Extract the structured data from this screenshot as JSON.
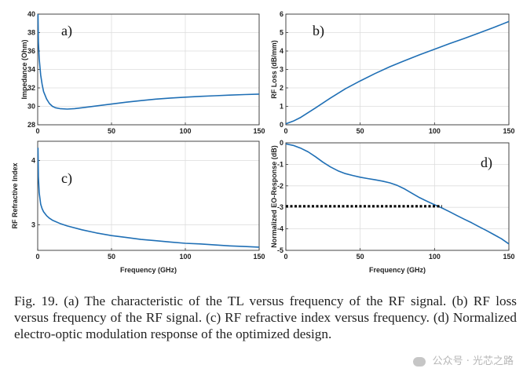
{
  "chart_data": [
    {
      "panel_label": "a)",
      "type": "line",
      "xlabel": "",
      "ylabel": "Impedance (Ohm)",
      "xlim": [
        0,
        150
      ],
      "ylim": [
        28,
        40
      ],
      "xticks": [
        "0",
        "50",
        "100",
        "150"
      ],
      "yticks": [
        "28",
        "30",
        "32",
        "34",
        "36",
        "38",
        "40"
      ],
      "grid": true,
      "series": [
        {
          "x": [
            0.2,
            0.5,
            1,
            2,
            3,
            4,
            6,
            8,
            10,
            12,
            15,
            20,
            25,
            30,
            40,
            50,
            60,
            70,
            80,
            90,
            100,
            110,
            120,
            130,
            140,
            150
          ],
          "y": [
            40,
            37.0,
            35.2,
            33.4,
            32.4,
            31.6,
            30.8,
            30.3,
            30.0,
            29.85,
            29.75,
            29.7,
            29.75,
            29.85,
            30.05,
            30.25,
            30.45,
            30.62,
            30.78,
            30.9,
            31.0,
            31.08,
            31.15,
            31.22,
            31.28,
            31.33
          ]
        }
      ]
    },
    {
      "panel_label": "b)",
      "type": "line",
      "xlabel": "",
      "ylabel": "RF Loss (dB/mm)",
      "xlim": [
        0,
        150
      ],
      "ylim": [
        0,
        6
      ],
      "xticks": [
        "0",
        "50",
        "100",
        "150"
      ],
      "yticks": [
        "0",
        "1",
        "2",
        "3",
        "4",
        "5",
        "6"
      ],
      "grid": true,
      "series": [
        {
          "x": [
            0,
            5,
            10,
            20,
            30,
            40,
            50,
            60,
            70,
            80,
            90,
            100,
            110,
            120,
            130,
            140,
            150
          ],
          "y": [
            0.05,
            0.2,
            0.4,
            0.92,
            1.45,
            1.95,
            2.38,
            2.78,
            3.15,
            3.48,
            3.8,
            4.1,
            4.4,
            4.68,
            4.98,
            5.28,
            5.6
          ]
        }
      ]
    },
    {
      "panel_label": "c)",
      "type": "line",
      "xlabel": "Frequency (GHz)",
      "ylabel": "RF Refractive Index",
      "xlim": [
        0,
        150
      ],
      "ylim": [
        2.6,
        4.3
      ],
      "xticks": [
        "0",
        "50",
        "100",
        "150"
      ],
      "yticks": [
        "3",
        "4"
      ],
      "grid": true,
      "series": [
        {
          "x": [
            0.2,
            0.5,
            1,
            2,
            3,
            4,
            6,
            8,
            10,
            15,
            20,
            30,
            40,
            50,
            60,
            70,
            80,
            90,
            100,
            110,
            120,
            130,
            140,
            150
          ],
          "y": [
            4.2,
            3.75,
            3.5,
            3.32,
            3.25,
            3.2,
            3.14,
            3.1,
            3.07,
            3.02,
            2.98,
            2.92,
            2.87,
            2.83,
            2.8,
            2.77,
            2.75,
            2.73,
            2.71,
            2.7,
            2.685,
            2.67,
            2.66,
            2.65
          ]
        }
      ]
    },
    {
      "panel_label": "d)",
      "type": "line",
      "xlabel": "Frequency (GHz)",
      "ylabel": "Normalized EO-Response (dB)",
      "xlim": [
        0,
        150
      ],
      "ylim": [
        -5,
        0
      ],
      "xticks": [
        "0",
        "50",
        "100",
        "150"
      ],
      "yticks": [
        "-5",
        "-4",
        "-3",
        "-2",
        "-1",
        "0"
      ],
      "grid": true,
      "series": [
        {
          "x": [
            0,
            5,
            10,
            15,
            20,
            25,
            30,
            35,
            40,
            45,
            50,
            55,
            60,
            65,
            70,
            75,
            80,
            85,
            90,
            95,
            100,
            105,
            110,
            115,
            120,
            125,
            130,
            135,
            140,
            145,
            150
          ],
          "y": [
            -0.05,
            -0.12,
            -0.25,
            -0.42,
            -0.65,
            -0.9,
            -1.12,
            -1.3,
            -1.43,
            -1.52,
            -1.6,
            -1.66,
            -1.72,
            -1.78,
            -1.86,
            -1.98,
            -2.15,
            -2.35,
            -2.55,
            -2.72,
            -2.88,
            -3.03,
            -3.2,
            -3.38,
            -3.55,
            -3.72,
            -3.9,
            -4.08,
            -4.27,
            -4.46,
            -4.7
          ]
        },
        {
          "style": "dotted",
          "x": [
            0,
            105
          ],
          "y": [
            -2.95,
            -2.95
          ]
        }
      ]
    }
  ],
  "caption": {
    "text": "Fig. 19.    (a) The characteristic of the TL versus frequency of the RF signal. (b) RF loss versus frequency of the RF signal. (c) RF refractive index versus frequency. (d) Normalized electro-optic modulation response of the optimized design."
  },
  "watermark": {
    "text": "公众号 · 光芯之路"
  }
}
